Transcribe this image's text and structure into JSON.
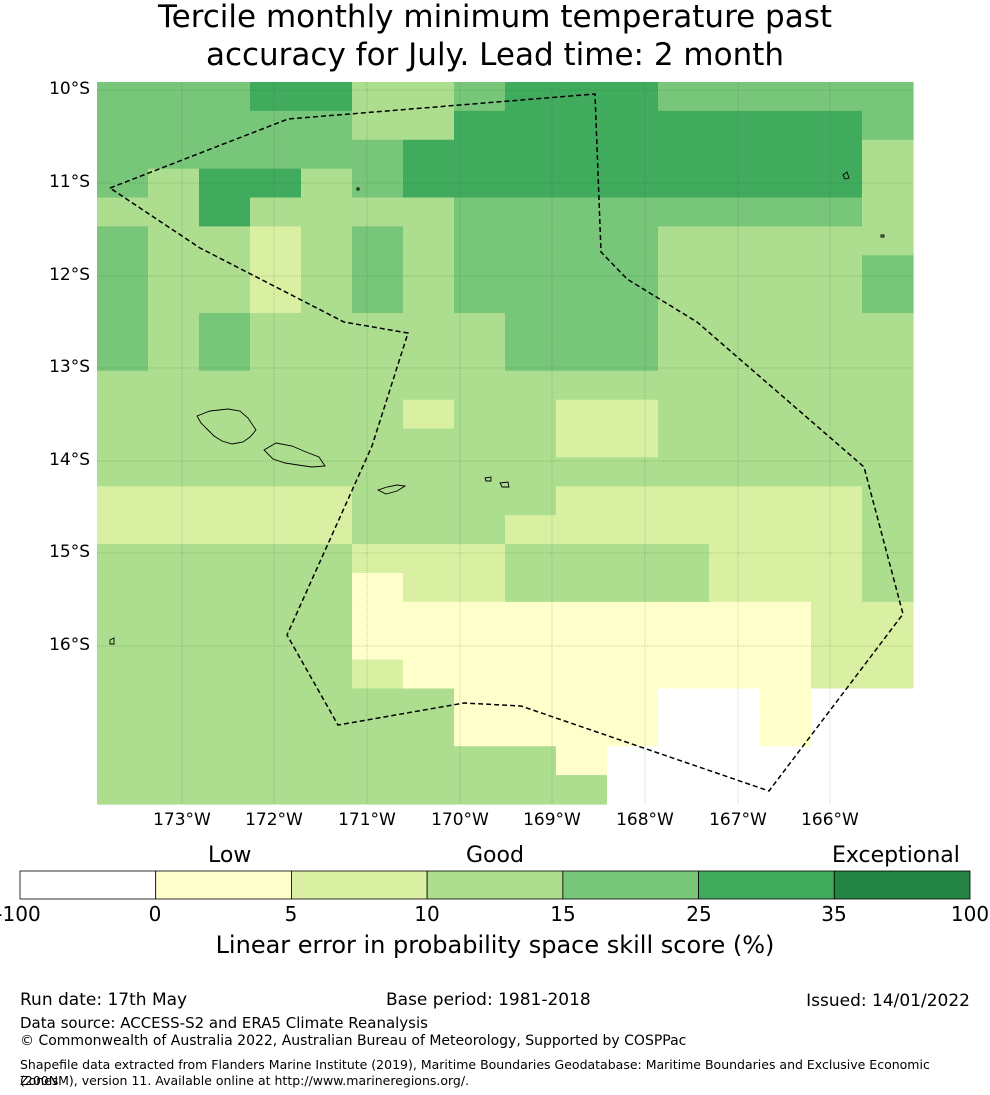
{
  "title_line1": "Tercile monthly minimum temperature past",
  "title_line2": "accuracy for July. Lead time: 2 month",
  "map": {
    "lat_labels": [
      "10°S",
      "11°S",
      "12°S",
      "13°S",
      "14°S",
      "15°S",
      "16°S"
    ],
    "lon_labels": [
      "173°W",
      "172°W",
      "171°W",
      "170°W",
      "169°W",
      "168°W",
      "167°W",
      "166°W"
    ],
    "category_colors": [
      "#ffffff",
      "#ffffcc",
      "#d9f0a3",
      "#addd8e",
      "#78c679",
      "#41ab5d",
      "#238443"
    ],
    "skill_grid_category_rows": [
      "4445533455544444",
      "4444433555555554",
      "4444445555555553",
      "4355345555555553",
      "3353333444444443",
      "4332343444433333",
      "4332343444433334",
      "4332343444433334",
      "4343333344433333",
      "4343333344433333",
      "3333333333333333",
      "3333332332233333",
      "3333333332233333",
      "3333333333333333",
      "2222233332222223",
      "2222233322222223",
      "3333322233332223",
      "3333312233332223",
      "3333311111111122",
      "3333311111111122",
      "3333321111111122",
      "3333333111100100",
      "3333333111100100",
      "3333333331000000",
      "3333333333000000"
    ],
    "eez_boundary_label": "",
    "islands": [
      "samoa-upolu",
      "samoa-savaii",
      "tutuila",
      "manua",
      "swains",
      "rose",
      "tokelau-a",
      "tokelau-b"
    ]
  },
  "colorbar": {
    "categories": [
      "Low",
      "Good",
      "Exceptional"
    ],
    "ticks": [
      "-100",
      "0",
      "5",
      "10",
      "15",
      "25",
      "35",
      "100"
    ],
    "colors": [
      "#ffffff",
      "#ffffcc",
      "#d9f0a3",
      "#addd8e",
      "#78c679",
      "#41ab5d",
      "#238443"
    ],
    "title": "Linear error in probability space skill score (%)"
  },
  "footer": {
    "run_date": "Run date: 17th May",
    "base_period": "Base period: 1981-2018",
    "issued": "Issued: 14/01/2022",
    "data_source": "Data source: ACCESS-S2 and ERA5 Climate Reanalysis",
    "copyright": "© Commonwealth of Australia 2022, Australian Bureau of Meteorology, Supported by COSPPac",
    "shapefile_line1": "Shapefile data extracted from Flanders Marine Institute (2019), Maritime Boundaries Geodatabase: Maritime Boundaries and Exclusive Economic Zones",
    "shapefile_line2": "(200NM), version 11. Available online at http://www.marineregions.org/."
  }
}
